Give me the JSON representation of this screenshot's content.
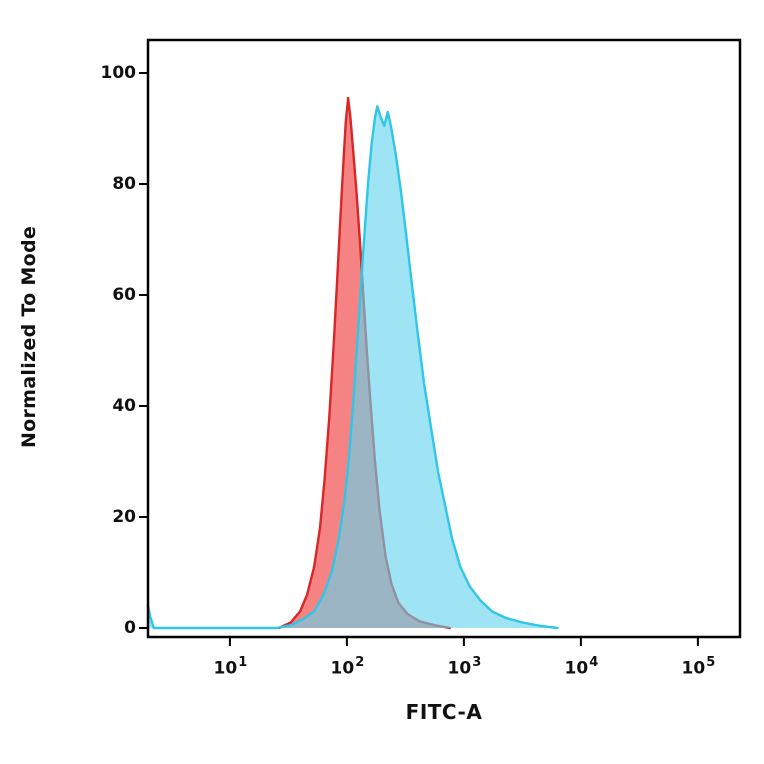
{
  "figure": {
    "background": "#ffffff",
    "border_color": "#000000"
  },
  "chart_data": {
    "type": "area",
    "subtype": "flow-cytometry-histogram",
    "title": "",
    "xlabel": "FITC-A",
    "ylabel": "Normalized To Mode",
    "x_scale": "log10",
    "x_log_range": [
      0.3,
      5.36
    ],
    "ylim": [
      0,
      100
    ],
    "grid": false,
    "legend": "none",
    "y_ticks": [
      0,
      20,
      40,
      60,
      80,
      100
    ],
    "x_ticks": [
      {
        "base": "10",
        "exp": "1",
        "log": 1
      },
      {
        "base": "10",
        "exp": "2",
        "log": 2
      },
      {
        "base": "10",
        "exp": "3",
        "log": 3
      },
      {
        "base": "10",
        "exp": "4",
        "log": 4
      },
      {
        "base": "10",
        "exp": "5",
        "log": 5
      }
    ],
    "series": [
      {
        "name": "red-population",
        "stroke": "#d92626",
        "fill": "rgba(243,96,96,0.78)",
        "peak_x_log": 2.01,
        "peak_y": 95.5,
        "points": [
          [
            1.42,
            0
          ],
          [
            1.52,
            1
          ],
          [
            1.6,
            3
          ],
          [
            1.66,
            6
          ],
          [
            1.72,
            11
          ],
          [
            1.77,
            18
          ],
          [
            1.81,
            27
          ],
          [
            1.85,
            38
          ],
          [
            1.89,
            52
          ],
          [
            1.93,
            68
          ],
          [
            1.96,
            80
          ],
          [
            1.99,
            91
          ],
          [
            2.01,
            95.5
          ],
          [
            2.03,
            92
          ],
          [
            2.05,
            87
          ],
          [
            2.08,
            79
          ],
          [
            2.11,
            70
          ],
          [
            2.14,
            60
          ],
          [
            2.17,
            50
          ],
          [
            2.2,
            41
          ],
          [
            2.24,
            30
          ],
          [
            2.28,
            21
          ],
          [
            2.33,
            13
          ],
          [
            2.38,
            8
          ],
          [
            2.44,
            4.5
          ],
          [
            2.52,
            2.5
          ],
          [
            2.62,
            1.2
          ],
          [
            2.75,
            0.5
          ],
          [
            2.88,
            0
          ]
        ]
      },
      {
        "name": "cyan-population",
        "stroke": "#2fc6e8",
        "fill": "rgba(98,212,238,0.62)",
        "peak_x_log": 2.26,
        "peak_y": 94,
        "points": [
          [
            0.3,
            4
          ],
          [
            0.32,
            2
          ],
          [
            0.35,
            0
          ],
          [
            1.4,
            0
          ],
          [
            1.52,
            0.5
          ],
          [
            1.62,
            1.5
          ],
          [
            1.72,
            3
          ],
          [
            1.8,
            6
          ],
          [
            1.87,
            10
          ],
          [
            1.93,
            16
          ],
          [
            1.98,
            23
          ],
          [
            2.02,
            31
          ],
          [
            2.06,
            42
          ],
          [
            2.1,
            55
          ],
          [
            2.14,
            68
          ],
          [
            2.18,
            80
          ],
          [
            2.21,
            87
          ],
          [
            2.24,
            92
          ],
          [
            2.26,
            94
          ],
          [
            2.29,
            92
          ],
          [
            2.32,
            90.5
          ],
          [
            2.35,
            93
          ],
          [
            2.38,
            90
          ],
          [
            2.42,
            85
          ],
          [
            2.46,
            79
          ],
          [
            2.5,
            72
          ],
          [
            2.55,
            63
          ],
          [
            2.6,
            54
          ],
          [
            2.66,
            44
          ],
          [
            2.72,
            36
          ],
          [
            2.78,
            28
          ],
          [
            2.84,
            22
          ],
          [
            2.9,
            16
          ],
          [
            2.97,
            11
          ],
          [
            3.05,
            7.5
          ],
          [
            3.14,
            5
          ],
          [
            3.24,
            3
          ],
          [
            3.36,
            1.8
          ],
          [
            3.5,
            1
          ],
          [
            3.65,
            0.4
          ],
          [
            3.8,
            0
          ]
        ]
      }
    ]
  }
}
